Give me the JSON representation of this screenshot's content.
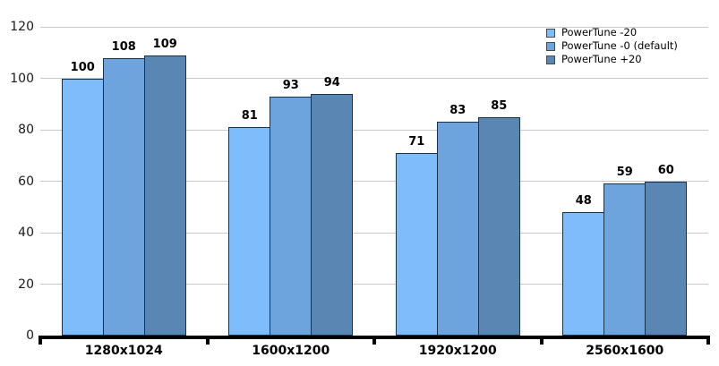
{
  "chart_data": {
    "type": "bar",
    "categories": [
      "1280x1024",
      "1600x1200",
      "1920x1200",
      "2560x1600"
    ],
    "series": [
      {
        "name": "PowerTune -20",
        "color": "#7ebcfc",
        "values": [
          100,
          81,
          71,
          48
        ]
      },
      {
        "name": "PowerTune -0 (default)",
        "color": "#6ea4dd",
        "values": [
          108,
          93,
          83,
          59
        ]
      },
      {
        "name": "PowerTune +20",
        "color": "#5a86b4",
        "values": [
          109,
          94,
          85,
          60
        ]
      }
    ],
    "ylim": [
      0,
      120
    ],
    "yticks": [
      0,
      20,
      40,
      60,
      80,
      100,
      120
    ],
    "grid": true,
    "legend_position": "top-right",
    "data_labels": true
  },
  "style": {
    "background": "#ffffff",
    "gridline_color": "#c9c9c9",
    "axis_color": "#000000",
    "bar_border_color": "#16324f",
    "legend_swatch_border": "#4a4a4a",
    "text_color": "#000000"
  }
}
